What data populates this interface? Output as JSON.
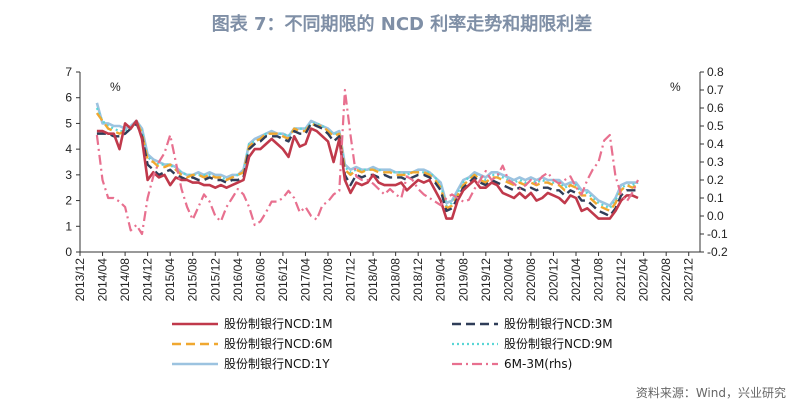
{
  "chart_data": {
    "type": "line",
    "title": "图表 7：不同期限的 NCD 利率走势和期限利差",
    "source": "资料来源：Wind，兴业研究",
    "left_axis": {
      "unit": "%",
      "min": 0,
      "max": 7,
      "ticks": [
        "0",
        "1",
        "2",
        "3",
        "4",
        "5",
        "6",
        "7"
      ]
    },
    "right_axis": {
      "unit": "%",
      "min": -0.2,
      "max": 0.8,
      "ticks": [
        "-0.2",
        "-0.1",
        "0.0",
        "0.1",
        "0.2",
        "0.3",
        "0.4",
        "0.5",
        "0.6",
        "0.7",
        "0.8"
      ]
    },
    "x_labels": [
      "2013/12",
      "2014/04",
      "2014/08",
      "2014/12",
      "2015/04",
      "2015/08",
      "2015/12",
      "2016/04",
      "2016/08",
      "2016/12",
      "2017/04",
      "2017/08",
      "2017/12",
      "2018/04",
      "2018/08",
      "2018/12",
      "2019/04",
      "2019/08",
      "2019/12",
      "2020/04",
      "2020/08",
      "2020/12",
      "2021/04",
      "2021/08",
      "2021/12",
      "2022/04",
      "2022/08",
      "2022/12"
    ],
    "x_start": "2013/12",
    "step": "month",
    "series": [
      {
        "name": "股份制银行NCD:1M",
        "axis": "left",
        "color": "#c0394b",
        "style": "solid",
        "values": [
          null,
          null,
          null,
          4.7,
          4.7,
          4.6,
          4.6,
          4.0,
          5.0,
          4.8,
          5.1,
          4.4,
          2.8,
          3.1,
          2.9,
          3.0,
          2.6,
          2.9,
          2.8,
          2.8,
          2.7,
          2.7,
          2.6,
          2.6,
          2.5,
          2.6,
          2.5,
          2.6,
          2.7,
          2.8,
          3.7,
          4.0,
          4.0,
          4.2,
          4.4,
          4.2,
          4.0,
          3.7,
          4.5,
          4.1,
          4.2,
          4.8,
          4.7,
          4.5,
          4.3,
          3.5,
          4.4,
          2.8,
          2.3,
          2.7,
          2.6,
          2.7,
          3.0,
          2.7,
          2.6,
          2.6,
          2.6,
          2.7,
          2.4,
          2.6,
          2.8,
          2.7,
          2.8,
          2.4,
          2.0,
          1.3,
          1.3,
          2.0,
          2.4,
          2.6,
          2.8,
          2.5,
          2.5,
          2.7,
          2.6,
          2.3,
          2.2,
          2.1,
          2.3,
          2.1,
          2.3,
          2.0,
          2.1,
          2.3,
          2.2,
          2.1,
          1.9,
          2.2,
          2.1,
          1.6,
          1.7,
          1.5,
          1.3,
          1.3,
          1.3,
          1.6,
          2.0,
          2.2,
          2.2,
          2.1
        ]
      },
      {
        "name": "股份制银行NCD:3M",
        "axis": "left",
        "color": "#2f3d58",
        "style": "dash",
        "values": [
          null,
          null,
          null,
          4.6,
          4.6,
          4.6,
          4.5,
          4.5,
          4.6,
          4.8,
          5.0,
          4.5,
          3.4,
          3.2,
          3.0,
          3.1,
          3.2,
          3.0,
          2.9,
          2.8,
          2.9,
          2.8,
          2.8,
          2.9,
          2.8,
          2.8,
          2.7,
          2.8,
          2.8,
          2.9,
          4.0,
          4.2,
          4.3,
          4.5,
          4.5,
          4.5,
          4.4,
          4.3,
          4.7,
          4.6,
          4.6,
          5.0,
          4.9,
          4.8,
          4.6,
          4.3,
          4.5,
          3.0,
          2.6,
          3.0,
          2.9,
          3.0,
          3.0,
          2.9,
          3.0,
          2.9,
          2.9,
          2.9,
          2.8,
          2.9,
          3.0,
          3.0,
          2.9,
          2.7,
          2.4,
          1.6,
          1.7,
          2.1,
          2.5,
          2.7,
          2.9,
          2.7,
          2.6,
          2.8,
          2.7,
          2.6,
          2.5,
          2.4,
          2.5,
          2.4,
          2.5,
          2.4,
          2.5,
          2.5,
          2.4,
          2.4,
          2.2,
          2.4,
          2.3,
          2.0,
          2.0,
          1.8,
          1.6,
          1.5,
          1.4,
          1.7,
          2.2,
          2.4,
          2.4,
          2.4
        ]
      },
      {
        "name": "股份制银行NCD:6M",
        "axis": "left",
        "color": "#f0a830",
        "style": "dash",
        "values": [
          null,
          null,
          null,
          5.4,
          5.1,
          4.8,
          4.7,
          4.6,
          4.7,
          4.8,
          5.1,
          4.6,
          3.6,
          3.5,
          3.3,
          3.3,
          3.4,
          3.2,
          3.0,
          2.9,
          3.0,
          3.0,
          2.9,
          3.0,
          2.9,
          2.9,
          2.8,
          2.9,
          3.0,
          3.1,
          4.1,
          4.3,
          4.4,
          4.6,
          4.6,
          4.6,
          4.5,
          4.4,
          4.8,
          4.7,
          4.7,
          5.0,
          4.9,
          4.9,
          4.7,
          4.5,
          4.6,
          3.2,
          3.0,
          3.2,
          3.1,
          3.2,
          3.2,
          3.1,
          3.1,
          3.1,
          3.0,
          3.0,
          3.0,
          3.1,
          3.1,
          3.1,
          3.0,
          2.8,
          2.5,
          1.7,
          1.8,
          2.2,
          2.6,
          2.8,
          3.0,
          2.8,
          2.7,
          2.9,
          2.9,
          2.8,
          2.7,
          2.6,
          2.7,
          2.6,
          2.7,
          2.6,
          2.7,
          2.7,
          2.6,
          2.6,
          2.4,
          2.6,
          2.5,
          2.2,
          2.2,
          2.0,
          1.8,
          1.7,
          1.6,
          1.9,
          2.4,
          2.6,
          2.5,
          2.6
        ]
      },
      {
        "name": "股份制银行NCD:9M",
        "axis": "left",
        "color": "#5ad6d6",
        "style": "dot",
        "values": [
          null,
          null,
          null,
          5.6,
          5.1,
          4.9,
          4.8,
          4.7,
          4.7,
          4.8,
          5.1,
          4.7,
          3.7,
          3.5,
          3.4,
          3.4,
          3.4,
          3.2,
          3.1,
          3.0,
          3.0,
          3.0,
          3.0,
          3.0,
          2.9,
          2.9,
          2.8,
          2.9,
          3.0,
          3.1,
          4.2,
          4.3,
          4.4,
          4.6,
          4.6,
          4.6,
          4.6,
          4.5,
          4.8,
          4.8,
          4.8,
          5.0,
          5.0,
          4.9,
          4.7,
          4.6,
          4.6,
          3.3,
          3.1,
          3.2,
          3.2,
          3.2,
          3.2,
          3.2,
          3.1,
          3.1,
          3.1,
          3.1,
          3.0,
          3.1,
          3.1,
          3.1,
          3.1,
          2.9,
          2.6,
          1.8,
          1.9,
          2.3,
          2.7,
          2.9,
          3.0,
          2.9,
          2.8,
          3.0,
          3.0,
          2.9,
          2.8,
          2.7,
          2.8,
          2.7,
          2.8,
          2.7,
          2.8,
          2.7,
          2.7,
          2.7,
          2.5,
          2.6,
          2.6,
          2.3,
          2.3,
          2.1,
          1.9,
          1.8,
          1.7,
          2.0,
          2.5,
          2.6,
          2.6,
          2.7
        ]
      },
      {
        "name": "股份制银行NCD:1Y",
        "axis": "left",
        "color": "#9cc3e0",
        "style": "solid",
        "values": [
          null,
          null,
          null,
          5.8,
          5.0,
          5.0,
          4.9,
          4.9,
          4.8,
          4.9,
          5.1,
          4.8,
          3.8,
          3.6,
          3.5,
          3.4,
          3.4,
          3.3,
          3.1,
          3.0,
          3.0,
          3.1,
          3.0,
          3.1,
          3.0,
          3.0,
          2.9,
          3.0,
          3.0,
          3.2,
          4.2,
          4.4,
          4.5,
          4.6,
          4.7,
          4.6,
          4.6,
          4.5,
          4.8,
          4.8,
          4.8,
          5.1,
          5.0,
          4.9,
          4.8,
          4.6,
          4.7,
          3.4,
          3.2,
          3.3,
          3.2,
          3.2,
          3.3,
          3.2,
          3.2,
          3.2,
          3.1,
          3.1,
          3.1,
          3.1,
          3.2,
          3.2,
          3.1,
          2.9,
          2.7,
          1.9,
          2.0,
          2.4,
          2.8,
          2.9,
          3.1,
          3.0,
          2.9,
          3.1,
          3.1,
          3.0,
          2.9,
          2.8,
          2.9,
          2.8,
          2.9,
          2.8,
          2.9,
          2.8,
          2.8,
          2.8,
          2.6,
          2.7,
          2.7,
          2.4,
          2.4,
          2.2,
          2.0,
          1.9,
          1.8,
          2.1,
          2.6,
          2.7,
          2.7,
          2.7
        ]
      },
      {
        "name": "6M-3M(rhs)",
        "axis": "right",
        "color": "#e8708f",
        "style": "dashdot",
        "values": [
          null,
          null,
          null,
          0.45,
          0.2,
          0.1,
          0.1,
          0.08,
          0.05,
          -0.08,
          -0.05,
          -0.1,
          0.1,
          0.22,
          0.3,
          0.35,
          0.45,
          0.3,
          0.15,
          0.05,
          -0.02,
          0.05,
          0.12,
          0.08,
          0.0,
          -0.03,
          0.05,
          0.1,
          0.15,
          0.12,
          0.05,
          -0.05,
          -0.03,
          0.02,
          0.08,
          0.08,
          0.1,
          0.14,
          0.1,
          0.02,
          0.05,
          0.0,
          -0.02,
          0.06,
          0.08,
          0.12,
          0.14,
          0.7,
          0.45,
          0.22,
          0.2,
          0.2,
          0.18,
          0.15,
          0.12,
          0.15,
          0.12,
          0.1,
          0.22,
          0.2,
          0.15,
          0.12,
          0.1,
          0.08,
          0.06,
          0.1,
          0.12,
          0.1,
          0.08,
          0.09,
          0.15,
          0.2,
          0.25,
          0.2,
          0.22,
          0.28,
          0.2,
          0.18,
          0.15,
          0.17,
          0.2,
          0.18,
          0.22,
          0.24,
          0.2,
          0.18,
          0.2,
          0.22,
          0.16,
          0.12,
          0.2,
          0.26,
          0.3,
          0.42,
          0.45,
          0.22,
          0.12,
          0.08,
          0.13,
          0.2
        ]
      }
    ],
    "legend": {
      "placement": "bottom",
      "columns": 2
    }
  }
}
